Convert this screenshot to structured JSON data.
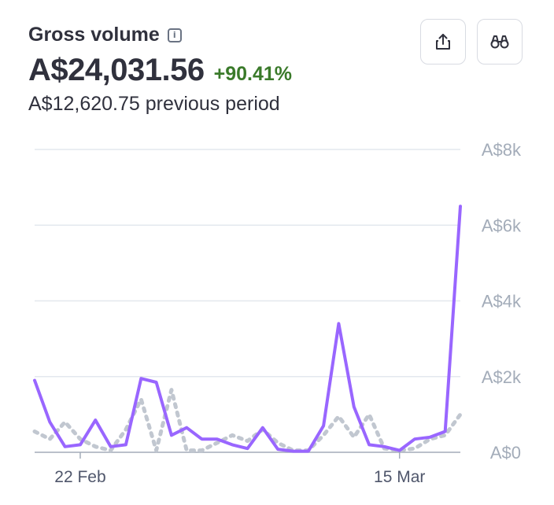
{
  "header": {
    "title": "Gross volume",
    "info_icon": "info-icon",
    "value": "A$24,031.56",
    "change": "+90.41%",
    "previous": "A$12,620.75 previous period",
    "change_color": "#3a7a2a"
  },
  "buttons": {
    "share_icon": "share-icon",
    "explore_icon": "binoculars-icon"
  },
  "chart_data": {
    "type": "line",
    "yticks": [
      "A$8k",
      "A$6k",
      "A$4k",
      "A$2k",
      "A$0"
    ],
    "ytick_values": [
      8000,
      6000,
      4000,
      2000,
      0
    ],
    "ylim": [
      0,
      8000
    ],
    "xticks": [
      {
        "label": "22 Feb",
        "index": 3
      },
      {
        "label": "15 Mar",
        "index": 24
      }
    ],
    "grid": true,
    "series": [
      {
        "style": "solid",
        "color": "#9966ff",
        "values": [
          1900,
          800,
          150,
          200,
          850,
          150,
          200,
          1950,
          1850,
          450,
          650,
          350,
          350,
          200,
          100,
          650,
          80,
          30,
          30,
          700,
          3400,
          1200,
          200,
          150,
          50,
          350,
          400,
          550,
          6500
        ]
      },
      {
        "style": "dotted",
        "color": "#c1c7d0",
        "values": [
          550,
          350,
          800,
          350,
          150,
          50,
          600,
          1400,
          50,
          1650,
          50,
          50,
          250,
          450,
          300,
          600,
          250,
          50,
          50,
          450,
          950,
          400,
          1000,
          100,
          50,
          100,
          350,
          450,
          1000
        ]
      }
    ]
  }
}
